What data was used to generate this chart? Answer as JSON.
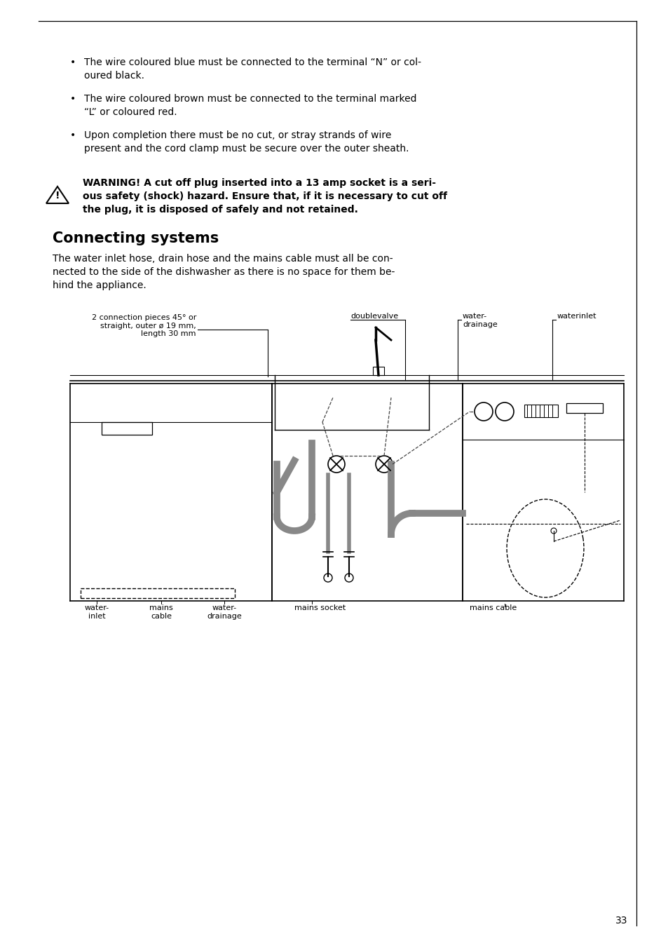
{
  "bg_color": "#ffffff",
  "text_color": "#000000",
  "page_number": "33",
  "bullet1_line1": "The wire coloured blue must be connected to the terminal “N” or col-",
  "bullet1_line2": "oured black.",
  "bullet2_line1": "The wire coloured brown must be connected to the terminal marked",
  "bullet2_line2": "“L” or coloured red.",
  "bullet3_line1": "Upon completion there must be no cut, or stray strands of wire",
  "bullet3_line2": "present and the cord clamp must be secure over the outer sheath.",
  "warning_line1": "WARNING! A cut off plug inserted into a 13 amp socket is a seri-",
  "warning_line2": "ous safety (shock) hazard. Ensure that, if it is necessary to cut off",
  "warning_line3": "the plug, it is disposed of safely and not retained.",
  "section_title": "Connecting systems",
  "para_line1": "The water inlet hose, drain hose and the mains cable must all be con-",
  "para_line2": "nected to the side of the dishwasher as there is no space for them be-",
  "para_line3": "hind the appliance."
}
